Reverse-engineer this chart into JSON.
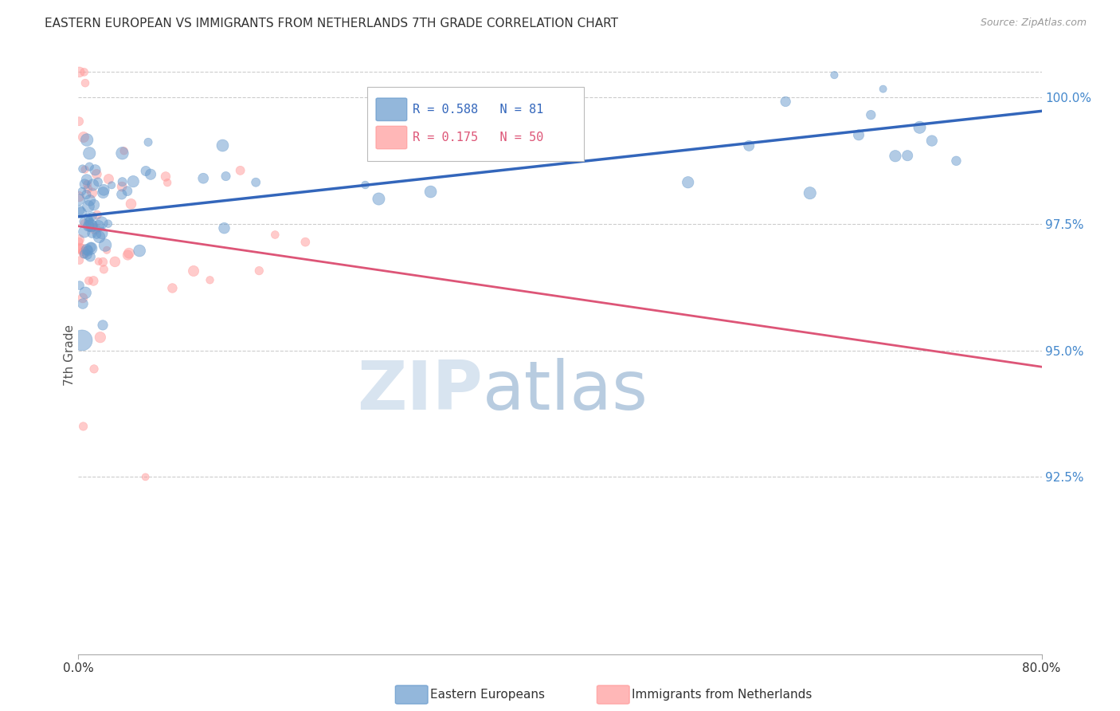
{
  "title": "EASTERN EUROPEAN VS IMMIGRANTS FROM NETHERLANDS 7TH GRADE CORRELATION CHART",
  "source": "Source: ZipAtlas.com",
  "ylabel": "7th Grade",
  "right_yticks": [
    100.0,
    97.5,
    95.0,
    92.5
  ],
  "right_ytick_labels": [
    "100.0%",
    "97.5%",
    "95.0%",
    "92.5%"
  ],
  "blue_R": 0.588,
  "blue_N": 81,
  "pink_R": 0.175,
  "pink_N": 50,
  "legend_label_blue": "Eastern Europeans",
  "legend_label_pink": "Immigrants from Netherlands",
  "blue_color": "#6699CC",
  "pink_color": "#FF9999",
  "blue_line_color": "#3366BB",
  "pink_line_color": "#DD5577",
  "watermark_zip": "ZIP",
  "watermark_atlas": "atlas",
  "watermark_color_zip": "#D8E4F0",
  "watermark_color_atlas": "#B8CCE0",
  "background_color": "#FFFFFF",
  "title_fontsize": 11,
  "right_axis_color": "#4488CC",
  "xmin": 0.0,
  "xmax": 79.0,
  "ymin": 89.0,
  "ymax": 100.8,
  "ytop_line": 100.5
}
